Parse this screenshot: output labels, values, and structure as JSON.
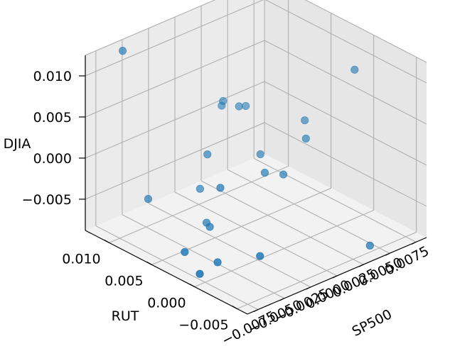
{
  "chart_data": {
    "type": "scatter",
    "projection": "3d",
    "title": "",
    "xlabel": "SP500",
    "ylabel": "RUT",
    "zlabel": "DJIA",
    "xticks": [
      "−0.0075",
      "−0.0050",
      "−0.0025",
      "0.0000",
      "0.0025",
      "0.0050",
      "0.0075"
    ],
    "yticks": [
      "−0.005",
      "0.000",
      "0.005",
      "0.010"
    ],
    "zticks": [
      "−0.005",
      "0.000",
      "0.005",
      "0.010"
    ],
    "xlim": [
      -0.0085,
      0.0085
    ],
    "ylim": [
      -0.0062,
      0.0128
    ],
    "zlim": [
      -0.0088,
      0.0125
    ],
    "grid": true,
    "marker_color": "#1f77b4",
    "points": [
      {
        "x": -0.0052,
        "y": 0.0125,
        "z": 0.0114
      },
      {
        "x": 0.0075,
        "y": 0.001,
        "z": 0.0083
      },
      {
        "x": 0.0052,
        "y": 0.004,
        "z": 0.0018
      },
      {
        "x": 0.0015,
        "y": 0.009,
        "z": 0.0035
      },
      {
        "x": 0.0022,
        "y": 0.008,
        "z": 0.003
      },
      {
        "x": 0.003,
        "y": 0.0082,
        "z": 0.0025
      },
      {
        "x": 0.0012,
        "y": 0.0088,
        "z": 0.0032
      },
      {
        "x": 0.0045,
        "y": 0.003,
        "z": 0.0005
      },
      {
        "x": 0.0018,
        "y": 0.005,
        "z": -0.001
      },
      {
        "x": 0.001,
        "y": 0.0035,
        "z": -0.002
      },
      {
        "x": -0.0008,
        "y": 0.008,
        "z": -0.0012
      },
      {
        "x": -0.002,
        "y": 0.005,
        "z": -0.003
      },
      {
        "x": 0.0022,
        "y": 0.0028,
        "z": -0.0025
      },
      {
        "x": -0.0015,
        "y": 0.008,
        "z": -0.005
      },
      {
        "x": -0.0048,
        "y": 0.01,
        "z": -0.0055
      },
      {
        "x": -0.003,
        "y": 0.005,
        "z": -0.0072
      },
      {
        "x": -0.0025,
        "y": 0.006,
        "z": -0.0075
      },
      {
        "x": 0.0045,
        "y": -0.0045,
        "z": -0.0085
      },
      {
        "x": -0.0055,
        "y": 0.001,
        "z": -0.008
      },
      {
        "x": -0.0035,
        "y": -0.0015,
        "z": -0.007
      },
      {
        "x": -0.007,
        "y": 0.003,
        "z": -0.007
      },
      {
        "x": -0.008,
        "y": 0.0,
        "z": -0.0075
      }
    ]
  }
}
